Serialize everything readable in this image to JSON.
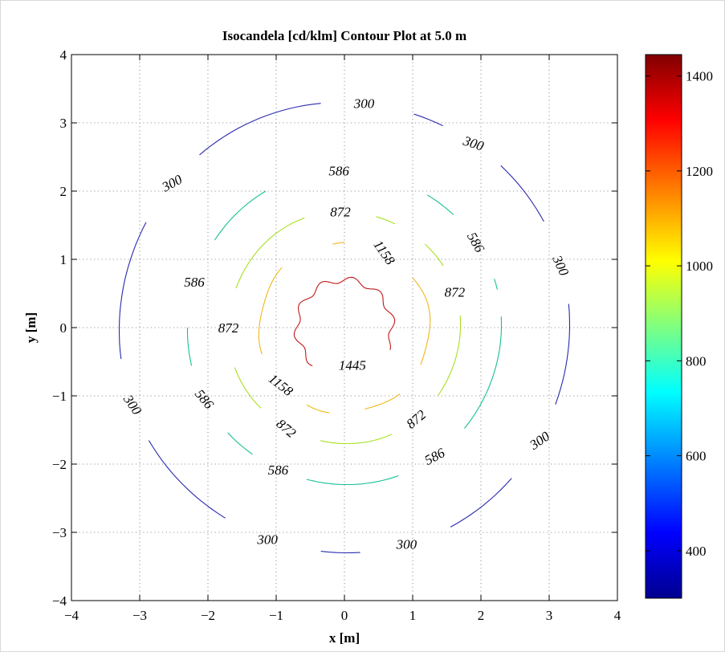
{
  "chart_data": {
    "type": "contour",
    "title": "Isocandela [cd/klm] Contour Plot at 5.0 m",
    "xlabel": "x [m]",
    "ylabel": "y [m]",
    "xlim": [
      -4,
      4
    ],
    "ylim": [
      -4,
      4
    ],
    "x_ticks": [
      "−4",
      "−3",
      "−2",
      "−1",
      "0",
      "1",
      "2",
      "3",
      "4"
    ],
    "y_ticks": [
      "−4",
      "−3",
      "−2",
      "−1",
      "0",
      "1",
      "2",
      "3",
      "4"
    ],
    "grid": true,
    "levels": [
      {
        "value": 300,
        "label": "300",
        "color": "#2a2ab0",
        "radius": 3.3
      },
      {
        "value": 586,
        "label": "586",
        "color": "#15c095",
        "radius": 2.3
      },
      {
        "value": 872,
        "label": "872",
        "color": "#a8e020",
        "radius": 1.7
      },
      {
        "value": 1158,
        "label": "1158",
        "color": "#f0b818",
        "radius": 1.25
      },
      {
        "value": 1445,
        "label": "1445",
        "color": "#c01818",
        "radius": 0.7
      }
    ],
    "colorbar": {
      "range": [
        300,
        1445
      ],
      "ticks": [
        "400",
        "600",
        "800",
        "1000",
        "1200",
        "1400"
      ],
      "tick_values": [
        400,
        600,
        800,
        1000,
        1200,
        1400
      ],
      "colors": [
        "#00008f",
        "#0000ff",
        "#00ffff",
        "#ffff00",
        "#ff0000",
        "#800000"
      ]
    }
  }
}
